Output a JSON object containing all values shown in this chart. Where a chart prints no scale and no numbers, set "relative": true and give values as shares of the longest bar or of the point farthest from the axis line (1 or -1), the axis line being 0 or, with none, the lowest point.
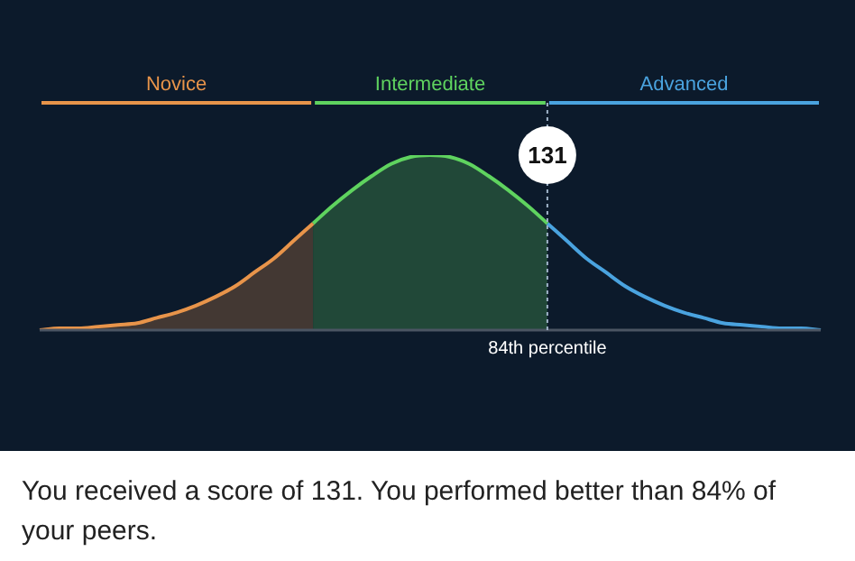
{
  "chart_data": {
    "type": "area",
    "relative": true,
    "categories": [
      null,
      null,
      null,
      null,
      null,
      null,
      null,
      null,
      null,
      null,
      null,
      null,
      null,
      null,
      null,
      null,
      null,
      null,
      null,
      null,
      null,
      null,
      null,
      null,
      null,
      null,
      null,
      null,
      null,
      null,
      null,
      null,
      null,
      null,
      null,
      null,
      null,
      null,
      null,
      null,
      null
    ],
    "series": [
      {
        "name": "Novice",
        "color": "#e8944a",
        "values": [
          0,
          0.01,
          0.01,
          0.02,
          0.03,
          0.04,
          0.07,
          0.1,
          0.14,
          0.19,
          0.25,
          0.33,
          0.41,
          0.51,
          0.61,
          null,
          null,
          null,
          null,
          null,
          null,
          null,
          null,
          null,
          null,
          null,
          null,
          null,
          null,
          null,
          null,
          null,
          null,
          null,
          null,
          null,
          null,
          null,
          null,
          null,
          null
        ]
      },
      {
        "name": "Intermediate",
        "color": "#5fd35f",
        "values": [
          null,
          null,
          null,
          null,
          null,
          null,
          null,
          null,
          null,
          null,
          null,
          null,
          null,
          null,
          0.61,
          0.71,
          0.8,
          0.88,
          0.95,
          0.99,
          1,
          0.99,
          0.95,
          0.88,
          0.8,
          0.71,
          0.61,
          null,
          null,
          null,
          null,
          null,
          null,
          null,
          null,
          null,
          null,
          null,
          null,
          null,
          null
        ]
      },
      {
        "name": "Advanced",
        "type": "line",
        "color": "#4aa3df",
        "values": [
          null,
          null,
          null,
          null,
          null,
          null,
          null,
          null,
          null,
          null,
          null,
          null,
          null,
          null,
          null,
          null,
          null,
          null,
          null,
          null,
          null,
          null,
          null,
          null,
          null,
          null,
          0.61,
          0.51,
          0.41,
          0.33,
          0.25,
          0.19,
          0.14,
          0.1,
          0.07,
          0.04,
          0.03,
          0.02,
          0.01,
          0.01,
          0
        ]
      }
    ],
    "annotations": [
      "131",
      "84th percentile",
      "You received a score of 131. You performed better than 84% of your peers."
    ],
    "marker": "none",
    "line_style": "solid"
  }
}
